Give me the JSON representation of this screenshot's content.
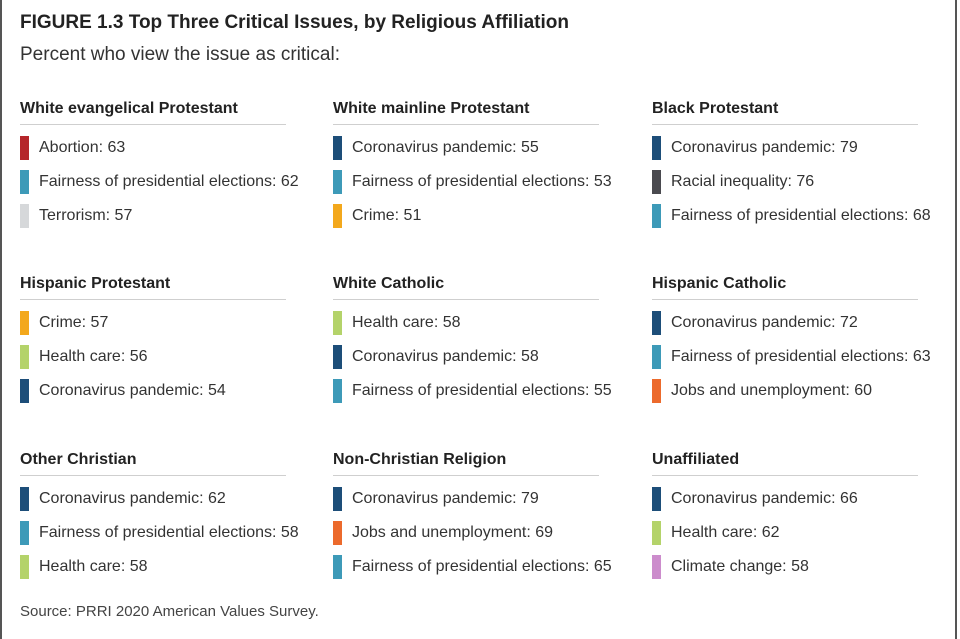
{
  "header": {
    "title": "FIGURE 1.3 Top Three Critical Issues, by Religious Affiliation",
    "subtitle": "Percent who view the issue as critical:"
  },
  "footer": {
    "source": "Source: PRRI 2020 American Values Survey."
  },
  "colors": {
    "Abortion": "#b5262b",
    "Fairness of presidential elections": "#3d9ab8",
    "Terrorism": "#d6d8da",
    "Coronavirus pandemic": "#1d4e79",
    "Crime": "#f3a81c",
    "Racial inequality": "#4a4a4f",
    "Health care": "#b4d36a",
    "Jobs and unemployment": "#ec6a2c",
    "Climate change": "#cc8ccc"
  },
  "chart_data": {
    "type": "table",
    "title": "FIGURE 1.3 Top Three Critical Issues, by Religious Affiliation",
    "subtitle": "Percent who view the issue as critical:",
    "groups": [
      {
        "name": "White evangelical Protestant",
        "items": [
          {
            "issue": "Abortion",
            "value": 63,
            "text": "Abortion: 63"
          },
          {
            "issue": "Fairness of presidential elections",
            "value": 62,
            "text": "Fairness of presidential elections: 62"
          },
          {
            "issue": "Terrorism",
            "value": 57,
            "text": "Terrorism: 57"
          }
        ]
      },
      {
        "name": "White mainline Protestant",
        "items": [
          {
            "issue": "Coronavirus pandemic",
            "value": 55,
            "text": "Coronavirus pandemic: 55"
          },
          {
            "issue": "Fairness of presidential elections",
            "value": 53,
            "text": "Fairness of presidential elections: 53"
          },
          {
            "issue": "Crime",
            "value": 51,
            "text": "Crime: 51"
          }
        ]
      },
      {
        "name": "Black Protestant",
        "items": [
          {
            "issue": "Coronavirus pandemic",
            "value": 79,
            "text": "Coronavirus pandemic: 79"
          },
          {
            "issue": "Racial inequality",
            "value": 76,
            "text": "Racial inequality: 76"
          },
          {
            "issue": "Fairness of presidential elections",
            "value": 68,
            "text": "Fairness of presidential elections: 68"
          }
        ]
      },
      {
        "name": "Hispanic Protestant",
        "items": [
          {
            "issue": "Crime",
            "value": 57,
            "text": "Crime: 57"
          },
          {
            "issue": "Health care",
            "value": 56,
            "text": "Health care: 56"
          },
          {
            "issue": "Coronavirus pandemic",
            "value": 54,
            "text": "Coronavirus pandemic: 54"
          }
        ]
      },
      {
        "name": "White Catholic",
        "items": [
          {
            "issue": "Health care",
            "value": 58,
            "text": "Health care: 58"
          },
          {
            "issue": "Coronavirus pandemic",
            "value": 58,
            "text": "Coronavirus pandemic: 58"
          },
          {
            "issue": "Fairness of presidential elections",
            "value": 55,
            "text": "Fairness of presidential elections:  55"
          }
        ]
      },
      {
        "name": "Hispanic Catholic",
        "items": [
          {
            "issue": "Coronavirus pandemic",
            "value": 72,
            "text": "Coronavirus pandemic: 72"
          },
          {
            "issue": "Fairness of presidential elections",
            "value": 63,
            "text": "Fairness of presidential elections: 63"
          },
          {
            "issue": "Jobs and unemployment",
            "value": 60,
            "text": "Jobs and unemployment: 60"
          }
        ]
      },
      {
        "name": "Other Christian",
        "items": [
          {
            "issue": "Coronavirus pandemic",
            "value": 62,
            "text": "Coronavirus pandemic: 62"
          },
          {
            "issue": "Fairness of presidential elections",
            "value": 58,
            "text": "Fairness of presidential elections: 58"
          },
          {
            "issue": "Health care",
            "value": 58,
            "text": "Health care: 58"
          }
        ]
      },
      {
        "name": "Non-Christian Religion",
        "items": [
          {
            "issue": "Coronavirus pandemic",
            "value": 79,
            "text": "Coronavirus pandemic: 79"
          },
          {
            "issue": "Jobs and unemployment",
            "value": 69,
            "text": "Jobs and unemployment: 69"
          },
          {
            "issue": "Fairness of presidential elections",
            "value": 65,
            "text": "Fairness of presidential elections: 65"
          }
        ]
      },
      {
        "name": "Unaffiliated",
        "items": [
          {
            "issue": "Coronavirus pandemic",
            "value": 66,
            "text": "Coronavirus pandemic: 66"
          },
          {
            "issue": "Health care",
            "value": 62,
            "text": "Health care: 62"
          },
          {
            "issue": "Climate change",
            "value": 58,
            "text": "Climate change: 58"
          }
        ]
      }
    ]
  }
}
